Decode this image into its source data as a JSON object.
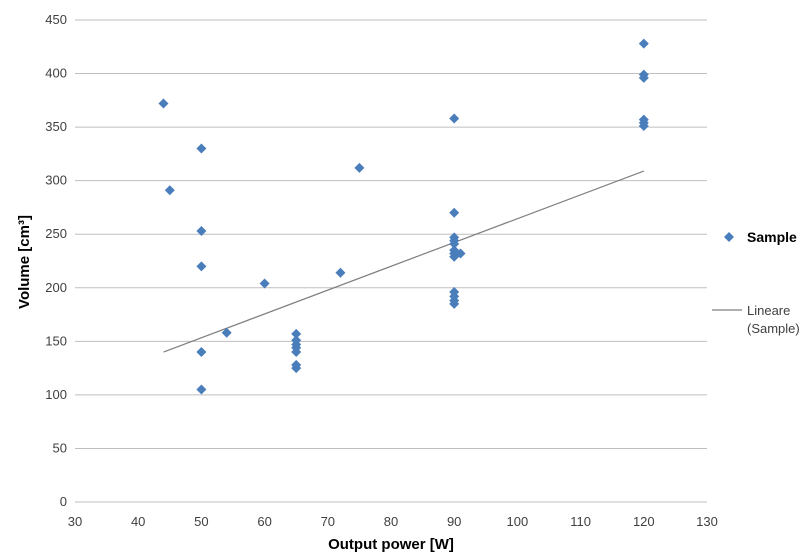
{
  "chart_data": {
    "type": "scatter",
    "title": "",
    "xlabel": "Output power [W]",
    "ylabel": "Volume [cm³]",
    "xlim": [
      30,
      130
    ],
    "ylim": [
      0,
      450
    ],
    "xticks": [
      30,
      40,
      50,
      60,
      70,
      80,
      90,
      100,
      110,
      120,
      130
    ],
    "yticks": [
      0,
      50,
      100,
      150,
      200,
      250,
      300,
      350,
      400,
      450
    ],
    "grid": "horizontal",
    "legend_position": "right",
    "series": [
      {
        "name": "Sample",
        "marker": "diamond",
        "color": "#4A7EBB",
        "points": [
          [
            44,
            372
          ],
          [
            45,
            291
          ],
          [
            50,
            330
          ],
          [
            50,
            253
          ],
          [
            50,
            220
          ],
          [
            50,
            140
          ],
          [
            50,
            105
          ],
          [
            54,
            158
          ],
          [
            60,
            204
          ],
          [
            65,
            157
          ],
          [
            65,
            151
          ],
          [
            65,
            147
          ],
          [
            65,
            144
          ],
          [
            65,
            140
          ],
          [
            65,
            128
          ],
          [
            65,
            125
          ],
          [
            72,
            214
          ],
          [
            75,
            312
          ],
          [
            90,
            358
          ],
          [
            90,
            270
          ],
          [
            90,
            247
          ],
          [
            90,
            244
          ],
          [
            90,
            241
          ],
          [
            90,
            235
          ],
          [
            90,
            232
          ],
          [
            90,
            229
          ],
          [
            90,
            196
          ],
          [
            90,
            192
          ],
          [
            90,
            188
          ],
          [
            90,
            185
          ],
          [
            91,
            232
          ],
          [
            120,
            428
          ],
          [
            120,
            399
          ],
          [
            120,
            396
          ],
          [
            120,
            357
          ],
          [
            120,
            354
          ],
          [
            120,
            351
          ]
        ]
      },
      {
        "name": "Lineare (Sample)",
        "type": "trendline",
        "color": "#7F7F7F",
        "x": [
          44,
          120
        ],
        "y": [
          140,
          309
        ]
      }
    ]
  },
  "legend": {
    "sample_label": "Sample",
    "trend_label_line1": "Lineare",
    "trend_label_line2": "(Sample)"
  }
}
